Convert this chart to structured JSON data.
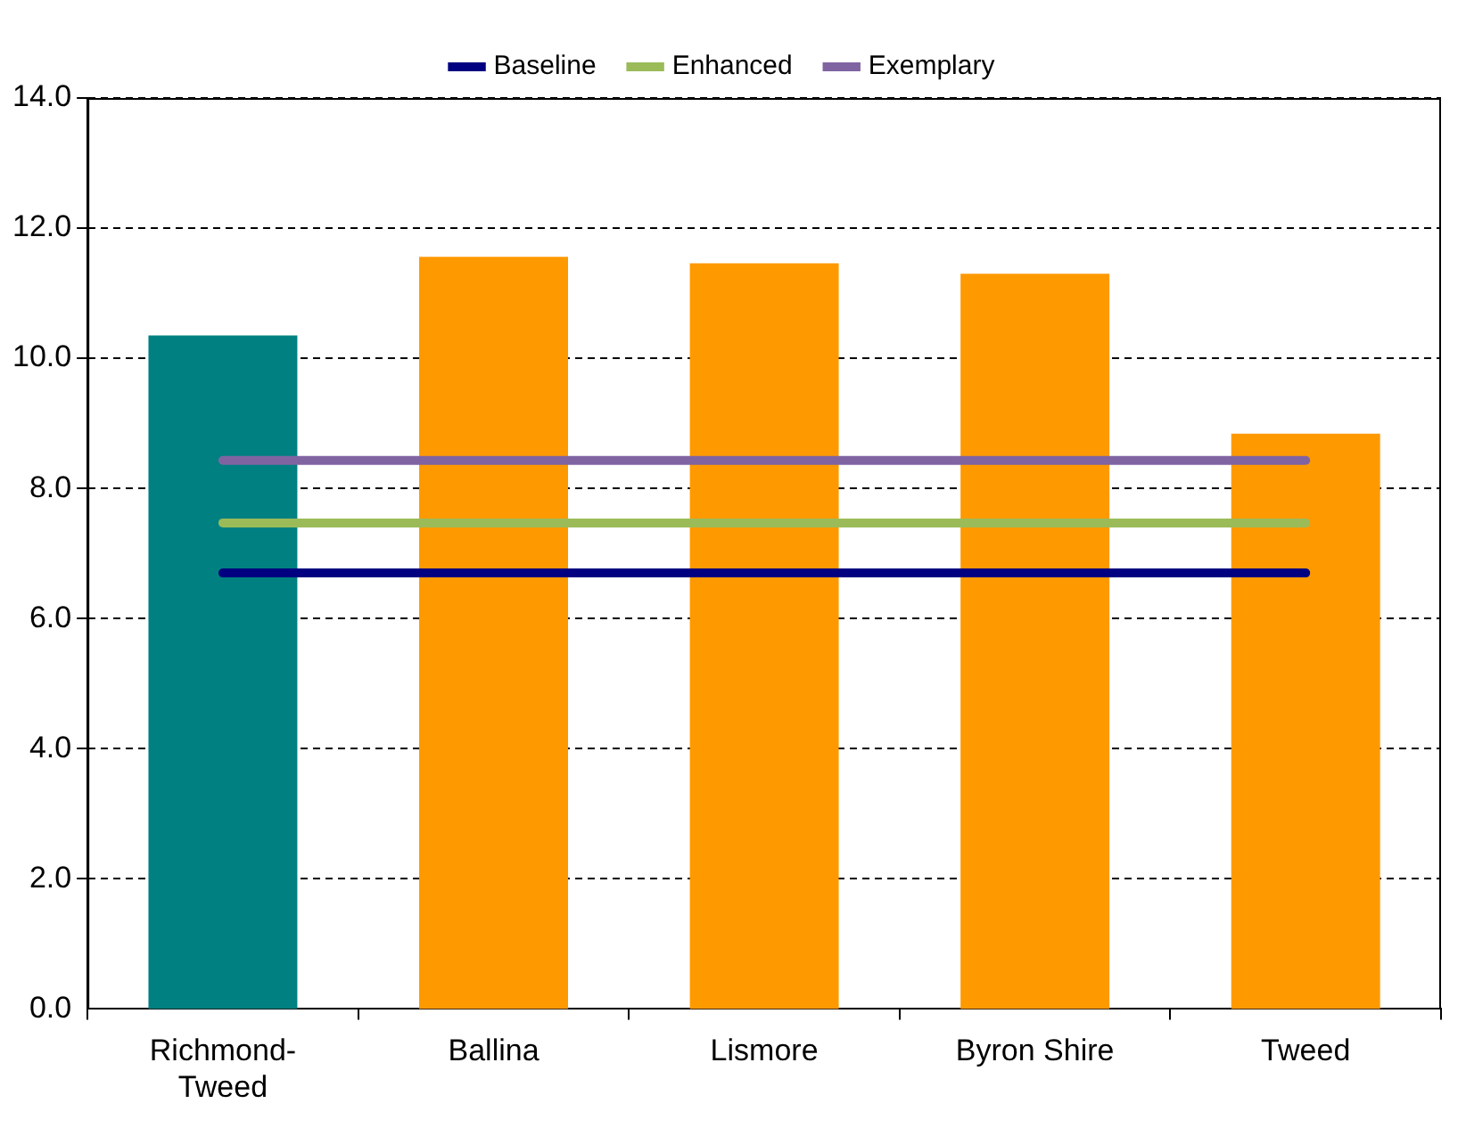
{
  "chart_data": {
    "type": "bar",
    "categories": [
      "Richmond-Tweed",
      "Ballina",
      "Lismore",
      "Byron Shire",
      "Tweed"
    ],
    "series": [
      {
        "colors": [
          "#008080",
          "#ff9900",
          "#ff9900",
          "#ff9900",
          "#ff9900"
        ],
        "values": [
          10.35,
          11.56,
          11.46,
          11.3,
          8.84
        ]
      },
      {
        "type": "line",
        "name": "Baseline",
        "color": "#000080",
        "values": [
          6.7,
          6.7,
          6.7,
          6.7,
          6.7
        ]
      },
      {
        "type": "line",
        "name": "Enhanced",
        "color": "#9bbb59",
        "values": [
          7.47,
          7.47,
          7.47,
          7.47,
          7.47
        ]
      },
      {
        "type": "line",
        "name": "Exemplary",
        "color": "#8064a2",
        "values": [
          8.43,
          8.43,
          8.43,
          8.43,
          8.43
        ]
      }
    ],
    "ylim": [
      0,
      14
    ],
    "yticks": [
      {
        "value": 0,
        "label": "0.0"
      },
      {
        "value": 2,
        "label": "2.0"
      },
      {
        "value": 4,
        "label": "4.0"
      },
      {
        "value": 6,
        "label": "6.0"
      },
      {
        "value": 8,
        "label": "8.0"
      },
      {
        "value": 10,
        "label": "10.0"
      },
      {
        "value": 12,
        "label": "12.0"
      },
      {
        "value": 14,
        "label": "14.0"
      }
    ],
    "grid": "y",
    "legend": "top",
    "marker": "none",
    "line_style": "solid"
  }
}
